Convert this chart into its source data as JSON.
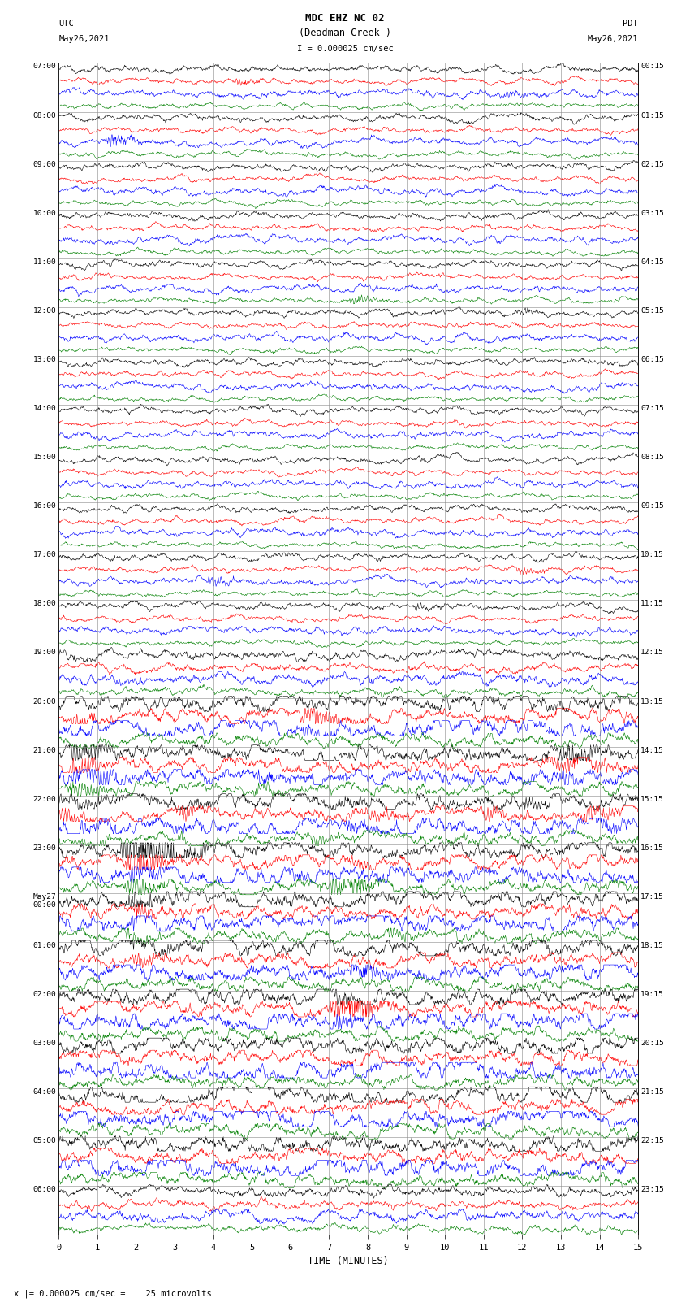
{
  "title_line1": "MDC EHZ NC 02",
  "title_line2": "(Deadman Creek )",
  "title_line3": "I = 0.000025 cm/sec",
  "xlabel": "TIME (MINUTES)",
  "footer": "x |= 0.000025 cm/sec =    25 microvolts",
  "utc_labels": [
    "07:00",
    "08:00",
    "09:00",
    "10:00",
    "11:00",
    "12:00",
    "13:00",
    "14:00",
    "15:00",
    "16:00",
    "17:00",
    "18:00",
    "19:00",
    "20:00",
    "21:00",
    "22:00",
    "23:00",
    "May27\n00:00",
    "01:00",
    "02:00",
    "03:00",
    "04:00",
    "05:00",
    "06:00"
  ],
  "pdt_labels": [
    "00:15",
    "01:15",
    "02:15",
    "03:15",
    "04:15",
    "05:15",
    "06:15",
    "07:15",
    "08:15",
    "09:15",
    "10:15",
    "11:15",
    "12:15",
    "13:15",
    "14:15",
    "15:15",
    "16:15",
    "17:15",
    "18:15",
    "19:15",
    "20:15",
    "21:15",
    "22:15",
    "23:15"
  ],
  "colors": [
    "black",
    "red",
    "blue",
    "green"
  ],
  "bg_color": "#ffffff",
  "xmin": 0,
  "xmax": 15,
  "xticks": [
    0,
    1,
    2,
    3,
    4,
    5,
    6,
    7,
    8,
    9,
    10,
    11,
    12,
    13,
    14,
    15
  ],
  "n_hours": 24,
  "n_traces_per_hour": 4,
  "figsize": [
    8.5,
    16.13
  ],
  "dpi": 100
}
